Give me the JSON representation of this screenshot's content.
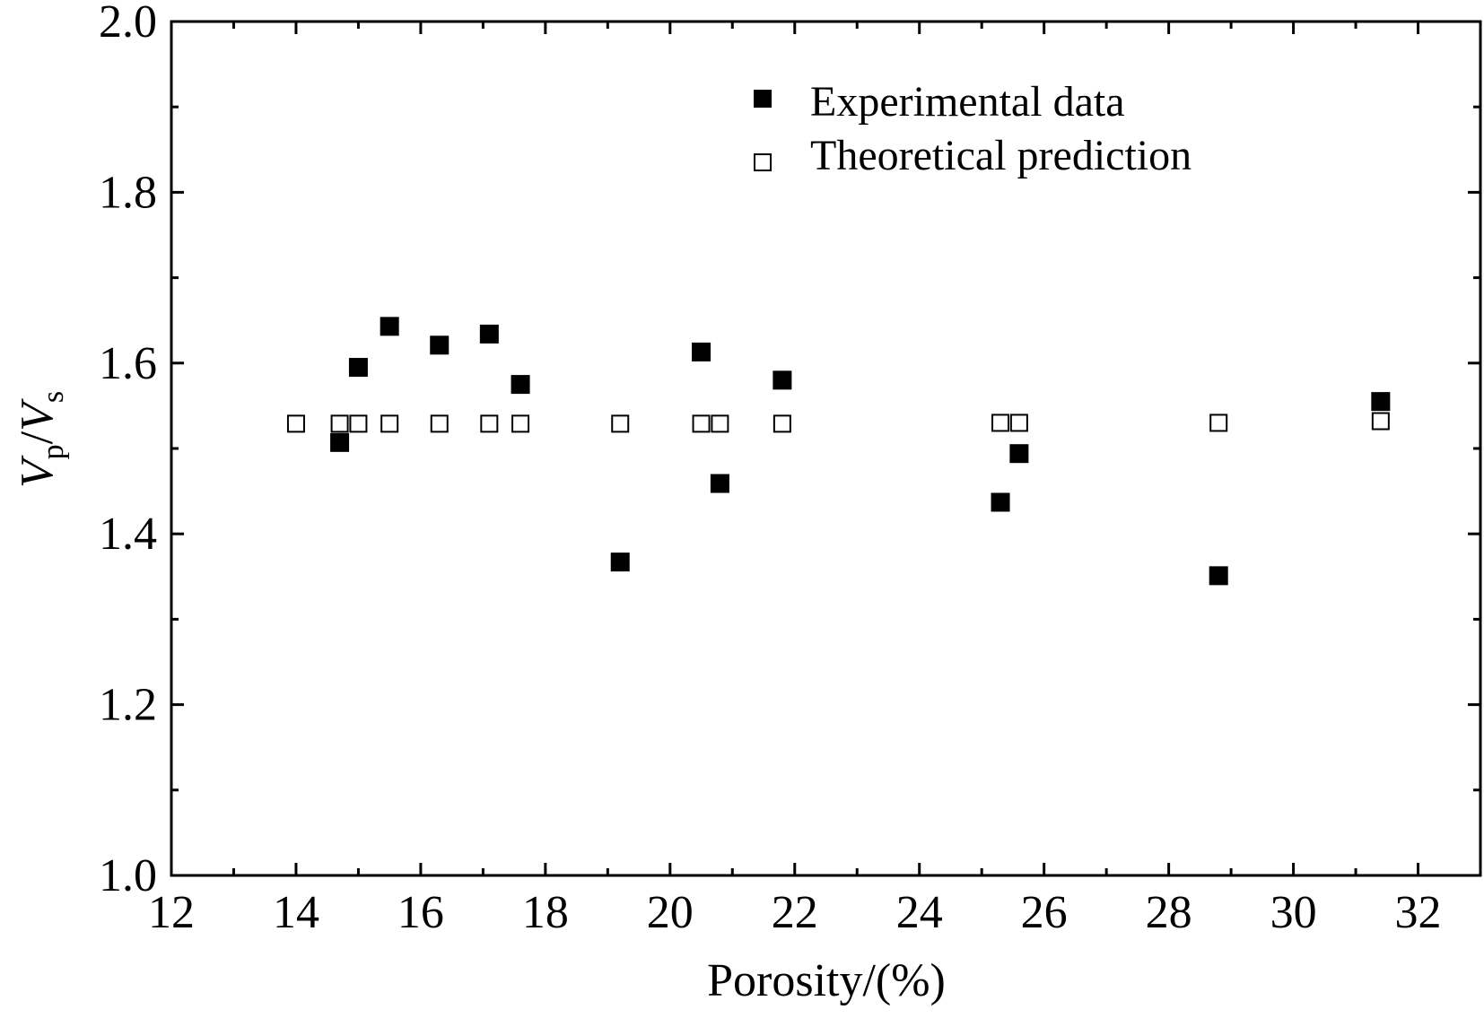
{
  "chart_data": {
    "type": "scatter",
    "title": "",
    "xlabel": "Porosity/(%)",
    "ylabel": {
      "v1": "V",
      "sub1": "p",
      "slash": "/",
      "v2": "V",
      "sub2": "s"
    },
    "xlim": [
      12,
      33
    ],
    "ylim": [
      1.0,
      2.0
    ],
    "xticks": [
      12,
      14,
      16,
      18,
      20,
      22,
      24,
      26,
      28,
      30,
      32
    ],
    "xtick_labels": [
      "12",
      "14",
      "16",
      "18",
      "20",
      "22",
      "24",
      "26",
      "28",
      "30",
      "32"
    ],
    "yticks": [
      1.0,
      1.2,
      1.4,
      1.6,
      1.8,
      2.0
    ],
    "ytick_labels": [
      "1.0",
      "1.2",
      "1.4",
      "1.6",
      "1.8",
      "2.0"
    ],
    "grid": false,
    "legend_position": "top-right",
    "series": [
      {
        "name": "Experimental data",
        "marker": "filled-square",
        "color": "#000000",
        "points": [
          {
            "x": 14.7,
            "y": 1.507
          },
          {
            "x": 15.0,
            "y": 1.595
          },
          {
            "x": 15.5,
            "y": 1.643
          },
          {
            "x": 16.3,
            "y": 1.621
          },
          {
            "x": 17.1,
            "y": 1.634
          },
          {
            "x": 17.6,
            "y": 1.575
          },
          {
            "x": 19.2,
            "y": 1.367
          },
          {
            "x": 20.5,
            "y": 1.613
          },
          {
            "x": 20.8,
            "y": 1.459
          },
          {
            "x": 21.8,
            "y": 1.58
          },
          {
            "x": 25.3,
            "y": 1.437
          },
          {
            "x": 25.6,
            "y": 1.494
          },
          {
            "x": 28.8,
            "y": 1.351
          },
          {
            "x": 31.4,
            "y": 1.555
          }
        ]
      },
      {
        "name": "Theoretical prediction",
        "marker": "open-square",
        "color": "#000000",
        "points": [
          {
            "x": 14.0,
            "y": 1.529
          },
          {
            "x": 14.7,
            "y": 1.529
          },
          {
            "x": 15.0,
            "y": 1.529
          },
          {
            "x": 15.5,
            "y": 1.529
          },
          {
            "x": 16.3,
            "y": 1.529
          },
          {
            "x": 17.1,
            "y": 1.529
          },
          {
            "x": 17.6,
            "y": 1.529
          },
          {
            "x": 19.2,
            "y": 1.529
          },
          {
            "x": 20.5,
            "y": 1.529
          },
          {
            "x": 20.8,
            "y": 1.529
          },
          {
            "x": 21.8,
            "y": 1.529
          },
          {
            "x": 25.3,
            "y": 1.53
          },
          {
            "x": 25.6,
            "y": 1.53
          },
          {
            "x": 28.8,
            "y": 1.53
          },
          {
            "x": 31.4,
            "y": 1.532
          }
        ]
      }
    ]
  }
}
